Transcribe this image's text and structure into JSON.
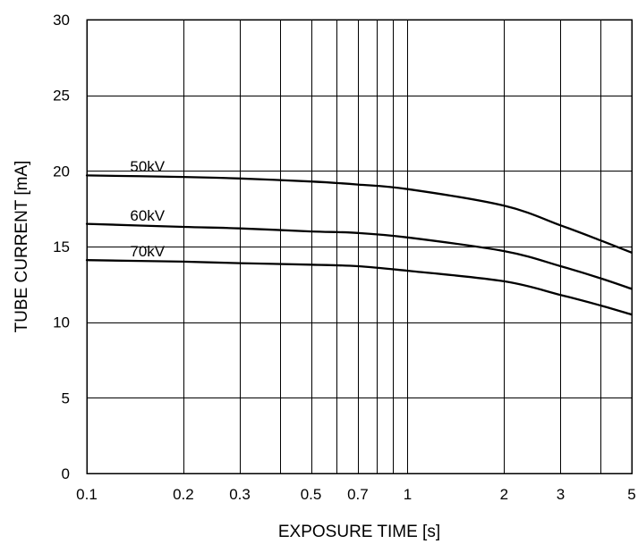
{
  "chart_data": {
    "type": "line",
    "xlabel": "EXPOSURE TIME  [s]",
    "ylabel": "TUBE CURRENT  [mA]",
    "xscale": "log",
    "xlim": [
      0.1,
      5
    ],
    "ylim": [
      0,
      30
    ],
    "grid": true,
    "x_grid_values": [
      0.1,
      0.2,
      0.3,
      0.4,
      0.5,
      0.6,
      0.7,
      0.8,
      0.9,
      1,
      2,
      3,
      4,
      5
    ],
    "x_ticks": [
      0.1,
      0.2,
      0.3,
      0.5,
      0.7,
      1,
      2,
      3,
      5
    ],
    "x_tick_labels": [
      "0.1",
      "0.2",
      "0.3",
      "0.5",
      "0.7",
      "1",
      "2",
      "3",
      "5"
    ],
    "y_ticks": [
      0,
      5,
      10,
      15,
      20,
      25,
      30
    ],
    "y_tick_labels": [
      "0",
      "5",
      "10",
      "15",
      "20",
      "25",
      "30"
    ],
    "series": [
      {
        "name": "50kV",
        "x": [
          0.1,
          0.2,
          0.3,
          0.5,
          0.7,
          1,
          2,
          3,
          4,
          5
        ],
        "y": [
          19.7,
          19.6,
          19.5,
          19.3,
          19.1,
          18.8,
          17.7,
          16.4,
          15.4,
          14.6
        ]
      },
      {
        "name": "60kV",
        "x": [
          0.1,
          0.2,
          0.3,
          0.5,
          0.7,
          1,
          2,
          3,
          4,
          5
        ],
        "y": [
          16.5,
          16.3,
          16.2,
          16.0,
          15.9,
          15.6,
          14.7,
          13.7,
          12.9,
          12.2
        ]
      },
      {
        "name": "70kV",
        "x": [
          0.1,
          0.2,
          0.3,
          0.5,
          0.7,
          1,
          2,
          3,
          4,
          5
        ],
        "y": [
          14.1,
          14.0,
          13.9,
          13.8,
          13.7,
          13.4,
          12.7,
          11.8,
          11.1,
          10.5
        ]
      }
    ]
  }
}
